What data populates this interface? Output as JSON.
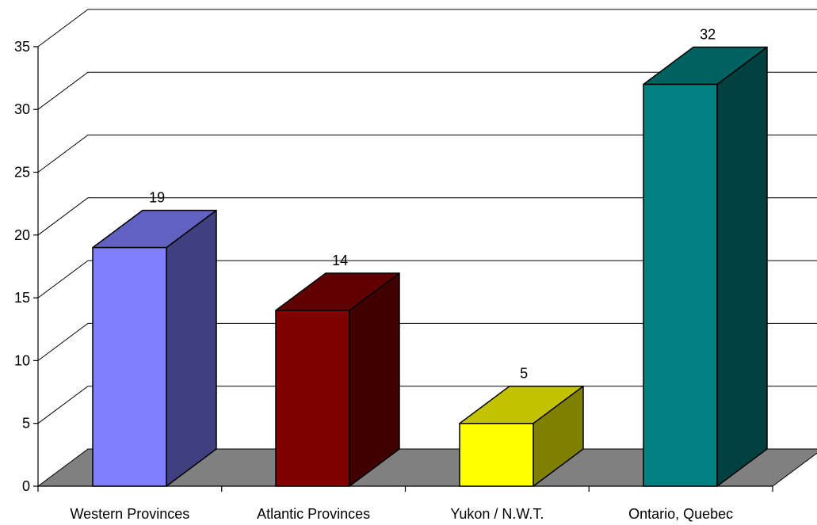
{
  "chart_data": {
    "type": "bar",
    "style": "3d-column",
    "categories": [
      "Western Provinces",
      "Atlantic Provinces",
      "Yukon / N.W.T.",
      "Ontario, Quebec"
    ],
    "values": [
      19,
      14,
      5,
      32
    ],
    "data_labels": [
      "19",
      "14",
      "5",
      "32"
    ],
    "colors": [
      "#8080ff",
      "#800000",
      "#ffff00",
      "#008080"
    ],
    "y_ticks": [
      "0",
      "5",
      "10",
      "15",
      "20",
      "25",
      "30",
      "35"
    ],
    "ylim": [
      0,
      35
    ],
    "grid": true,
    "legend": "none",
    "floor_color": "#808080",
    "title": "",
    "xlabel": "",
    "ylabel": ""
  }
}
